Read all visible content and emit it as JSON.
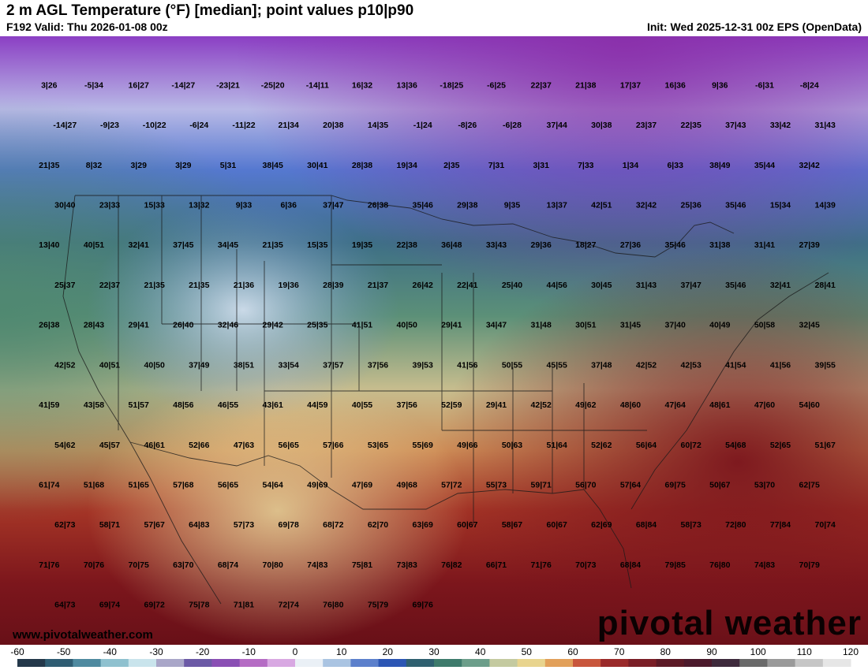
{
  "header": {
    "title": "2 m AGL Temperature (°F) [median]; point values p10|p90",
    "valid": "F192 Valid: Thu 2026-01-08 00z",
    "init": "Init: Wed 2025-12-31 00z EPS (OpenData)"
  },
  "footer": {
    "website": "www.pivotalweather.com",
    "brand": "pivotal weather"
  },
  "colorbar": {
    "ticks": [
      "-60",
      "-50",
      "-40",
      "-30",
      "-20",
      "-10",
      "0",
      "10",
      "20",
      "30",
      "40",
      "50",
      "60",
      "70",
      "80",
      "90",
      "100",
      "110",
      "120"
    ],
    "colors": [
      "#24384a",
      "#2f5d73",
      "#4f8aa0",
      "#8fc1cf",
      "#c9e4ec",
      "#a9a6c8",
      "#6c5aa6",
      "#8a4fb4",
      "#b56cc4",
      "#d8a8e2",
      "#eaf0f6",
      "#aac4e2",
      "#5c80cc",
      "#2c56b4",
      "#2f6070",
      "#3e7b6c",
      "#6c9e8a",
      "#c4caa0",
      "#e8d48e",
      "#e2a05a",
      "#c8563c",
      "#9a2a2a",
      "#7a1e26",
      "#5c1a26",
      "#4c1a2c",
      "#3e2a3c",
      "#6a6a6a",
      "#9a9a9a",
      "#c6c6c6",
      "#e6e6e6"
    ]
  },
  "map": {
    "colors": {
      "arctic_violet": "#8b3fc4",
      "cold_blue": "#3e66c8",
      "cool_teal": "#3f6f6a",
      "mild_tan": "#d7be86",
      "warm_red": "#9f2a24",
      "hot_maroon": "#6f1018"
    },
    "points": [
      "3|26",
      "-5|34",
      "16|27",
      "-14|27",
      "-23|21",
      "-25|20",
      "-14|11",
      "16|32",
      "13|36",
      "-18|25",
      "-6|25",
      "22|37",
      "21|38",
      "17|37",
      "16|36",
      "9|36",
      "-6|31",
      "-8|24",
      "-14|27",
      "-9|23",
      "-10|22",
      "-6|24",
      "-11|22",
      "21|34",
      "20|38",
      "14|35",
      "-1|24",
      "-8|26",
      "-6|28",
      "37|44",
      "30|38",
      "23|37",
      "22|35",
      "37|43",
      "33|42",
      "31|43",
      "21|35",
      "8|32",
      "3|29",
      "3|29",
      "5|31",
      "38|45",
      "30|41",
      "28|38",
      "19|34",
      "2|35",
      "7|31",
      "3|31",
      "7|33",
      "1|34",
      "6|33",
      "38|49",
      "35|44",
      "32|42",
      "30|40",
      "23|33",
      "15|33",
      "13|32",
      "9|33",
      "6|36",
      "37|47",
      "26|38",
      "35|46",
      "29|38",
      "9|35",
      "13|37",
      "42|51",
      "32|42",
      "25|36",
      "35|46",
      "15|34",
      "14|39",
      "13|40",
      "40|51",
      "32|41",
      "37|45",
      "34|45",
      "21|35",
      "15|35",
      "19|35",
      "22|38",
      "36|48",
      "33|43",
      "29|36",
      "18|27",
      "27|36",
      "35|46",
      "31|38",
      "31|41",
      "27|39",
      "25|37",
      "22|37",
      "21|35",
      "21|35",
      "21|36",
      "19|36",
      "28|39",
      "21|37",
      "26|42",
      "22|41",
      "25|40",
      "44|56",
      "30|45",
      "31|43",
      "37|47",
      "35|46",
      "32|41",
      "28|41",
      "26|38",
      "28|43",
      "29|41",
      "26|40",
      "32|46",
      "29|42",
      "25|35",
      "41|51",
      "40|50",
      "29|41",
      "34|47",
      "31|48",
      "30|51",
      "31|45",
      "37|40",
      "40|49",
      "50|58",
      "32|45",
      "42|52",
      "40|51",
      "40|50",
      "37|49",
      "38|51",
      "33|54",
      "37|57",
      "37|56",
      "39|53",
      "41|56",
      "50|55",
      "45|55",
      "37|48",
      "42|52",
      "42|53",
      "41|54",
      "41|56",
      "39|55",
      "41|59",
      "43|58",
      "51|57",
      "48|56",
      "46|55",
      "43|61",
      "44|59",
      "40|55",
      "37|56",
      "52|59",
      "29|41",
      "42|52",
      "49|62",
      "48|60",
      "47|64",
      "48|61",
      "47|60",
      "54|60",
      "54|62",
      "45|57",
      "46|61",
      "52|66",
      "47|63",
      "56|65",
      "57|66",
      "53|65",
      "55|69",
      "49|66",
      "50|63",
      "51|64",
      "52|62",
      "56|64",
      "60|72",
      "54|68",
      "52|65",
      "51|67",
      "61|74",
      "51|68",
      "51|65",
      "57|68",
      "56|65",
      "54|64",
      "49|69",
      "47|69",
      "49|68",
      "57|72",
      "55|73",
      "59|71",
      "56|70",
      "57|64",
      "69|75",
      "50|67",
      "53|70",
      "62|75",
      "62|73",
      "58|71",
      "57|67",
      "64|83",
      "57|73",
      "69|78",
      "68|72",
      "62|70",
      "63|69",
      "60|67",
      "58|67",
      "60|67",
      "62|69",
      "68|84",
      "58|73",
      "72|80",
      "77|84",
      "70|74",
      "71|76",
      "70|76",
      "70|75",
      "63|70",
      "68|74",
      "70|80",
      "74|83",
      "75|81",
      "73|83",
      "76|82",
      "66|71",
      "71|76",
      "70|73",
      "68|84",
      "79|85",
      "76|80",
      "74|83",
      "70|79",
      "64|73",
      "69|74",
      "69|72",
      "75|78",
      "71|81",
      "72|74",
      "76|80",
      "75|79",
      "69|76"
    ]
  }
}
